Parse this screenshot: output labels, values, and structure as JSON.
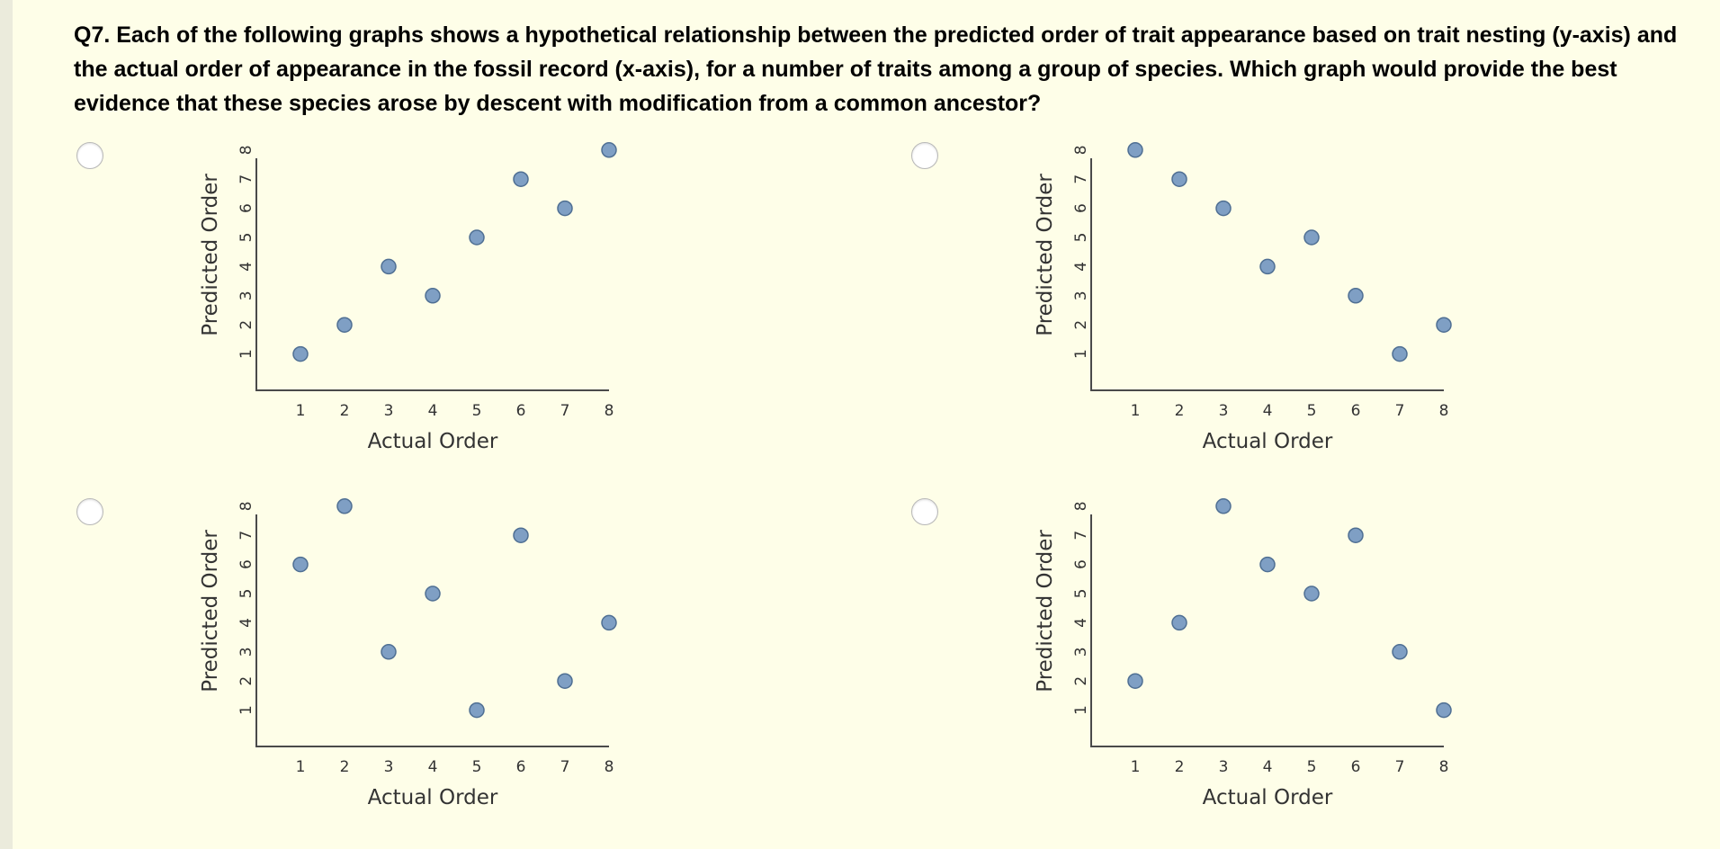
{
  "question": {
    "text": "Q7. Each of the following graphs shows a hypothetical relationship between the predicted order of trait appearance based on trait nesting (y-axis) and the actual order of appearance in the fossil record (x-axis), for a number of traits among a group of species. Which graph would provide the best evidence that these species arose by descent with modification from a common ancestor?"
  },
  "colors": {
    "background": "#fefee8",
    "point_fill": "#7f9fc4",
    "point_stroke": "#4f6f93"
  },
  "chart_data": [
    {
      "type": "scatter",
      "xlabel": "Actual Order",
      "ylabel": "Predicted Order",
      "xticks": [
        1,
        2,
        3,
        4,
        5,
        6,
        7,
        8
      ],
      "yticks": [
        1,
        2,
        3,
        4,
        5,
        6,
        7,
        8
      ],
      "xlim": [
        0,
        8
      ],
      "ylim": [
        0,
        8
      ],
      "x": [
        1,
        2,
        3,
        4,
        5,
        6,
        7,
        8
      ],
      "y": [
        1,
        2,
        4,
        3,
        5,
        7,
        6,
        8
      ]
    },
    {
      "type": "scatter",
      "xlabel": "Actual Order",
      "ylabel": "Predicted Order",
      "xticks": [
        1,
        2,
        3,
        4,
        5,
        6,
        7,
        8
      ],
      "yticks": [
        1,
        2,
        3,
        4,
        5,
        6,
        7,
        8
      ],
      "xlim": [
        0,
        8
      ],
      "ylim": [
        0,
        8
      ],
      "x": [
        1,
        2,
        3,
        4,
        5,
        6,
        7,
        8
      ],
      "y": [
        8,
        7,
        6,
        4,
        5,
        3,
        1,
        2
      ]
    },
    {
      "type": "scatter",
      "xlabel": "Actual Order",
      "ylabel": "Predicted Order",
      "xticks": [
        1,
        2,
        3,
        4,
        5,
        6,
        7,
        8
      ],
      "yticks": [
        1,
        2,
        3,
        4,
        5,
        6,
        7,
        8
      ],
      "xlim": [
        0,
        8
      ],
      "ylim": [
        0,
        8
      ],
      "x": [
        1,
        2,
        3,
        4,
        5,
        6,
        7,
        8
      ],
      "y": [
        6,
        8,
        3,
        5,
        1,
        7,
        2,
        4
      ]
    },
    {
      "type": "scatter",
      "xlabel": "Actual Order",
      "ylabel": "Predicted Order",
      "xticks": [
        1,
        2,
        3,
        4,
        5,
        6,
        7,
        8
      ],
      "yticks": [
        1,
        2,
        3,
        4,
        5,
        6,
        7,
        8
      ],
      "xlim": [
        0,
        8
      ],
      "ylim": [
        0,
        8
      ],
      "x": [
        1,
        2,
        3,
        4,
        5,
        6,
        7,
        8
      ],
      "y": [
        2,
        4,
        8,
        6,
        5,
        7,
        3,
        1
      ]
    }
  ]
}
